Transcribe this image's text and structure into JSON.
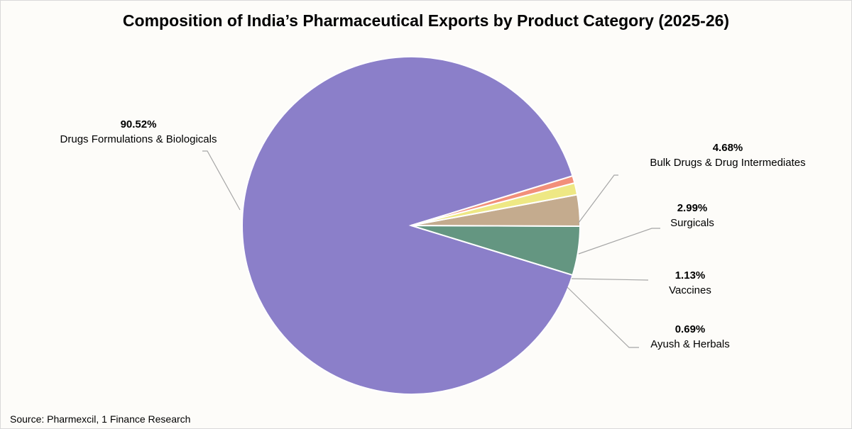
{
  "chart_data": {
    "type": "pie",
    "title": "Composition of India’s Pharmaceutical Exports by Product Category (2025-26)",
    "slices": [
      {
        "label": "Drugs Formulations & Biologicals",
        "value": 90.52,
        "display": "90.52%",
        "color": "#8b7fc9"
      },
      {
        "label": "Bulk Drugs & Drug Intermediates",
        "value": 4.68,
        "display": "4.68%",
        "color": "#649681"
      },
      {
        "label": "Surgicals",
        "value": 2.99,
        "display": "2.99%",
        "color": "#c4ab8e"
      },
      {
        "label": "Vaccines",
        "value": 1.13,
        "display": "1.13%",
        "color": "#eee884"
      },
      {
        "label": "Ayush & Herbals",
        "value": 0.69,
        "display": "0.69%",
        "color": "#f28f7a"
      }
    ],
    "source": "Source: Pharmexcil, 1 Finance Research",
    "leader_line_color": "#a6a6a6"
  }
}
